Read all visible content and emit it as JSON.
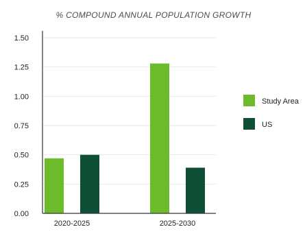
{
  "chart_data": {
    "type": "bar",
    "title": "% COMPOUND ANNUAL POPULATION GROWTH",
    "xlabel": "",
    "ylabel": "",
    "categories": [
      "2020-2025",
      "2025-2030"
    ],
    "series": [
      {
        "name": "Study Area",
        "color": "#6cbb2b",
        "values": [
          0.47,
          1.28
        ]
      },
      {
        "name": "US",
        "color": "#0f4f35",
        "values": [
          0.5,
          0.39
        ]
      }
    ],
    "yticks": [
      "0.00",
      "0.25",
      "0.50",
      "0.75",
      "1.00",
      "1.25",
      "1.50"
    ],
    "ylim": [
      0,
      1.5
    ],
    "grid": true,
    "legend": "right"
  }
}
